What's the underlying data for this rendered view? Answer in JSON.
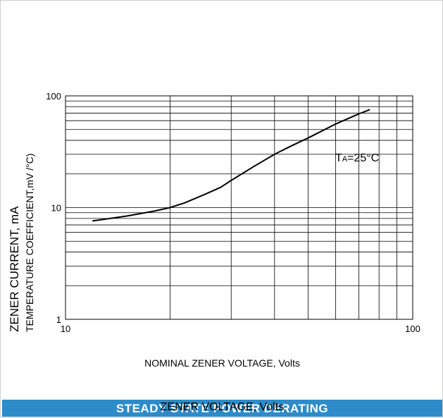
{
  "chart_data": {
    "type": "line",
    "xscale": "log",
    "yscale": "log",
    "xlim": [
      10,
      100
    ],
    "ylim": [
      1,
      100
    ],
    "x_ticks": [
      "10",
      "100"
    ],
    "y_ticks": [
      "1",
      "10",
      "100"
    ],
    "xlabel": "NOMINAL ZENER VOLTAGE, Volts",
    "ylabel": "ZENER CURRENT, mA",
    "ylabel2": "TEMPERATURE COEFFICIENT,mV /°C)",
    "annotation": {
      "main": "T",
      "sub": "A",
      "rest": "=25°C"
    },
    "grid": true,
    "series": [
      {
        "x": [
          12,
          15,
          18,
          20,
          22,
          25,
          28,
          30,
          35,
          40,
          45,
          50,
          60,
          70,
          75
        ],
        "y": [
          7.6,
          8.4,
          9.3,
          10.0,
          11.0,
          13.0,
          15.2,
          17.5,
          23.5,
          30,
          36,
          42,
          56,
          69,
          75
        ]
      }
    ]
  },
  "footer": {
    "title": "STEADY STATE POWER DERATING",
    "overlay": "ZENER VOLTAGE, Volts",
    "bg_color": "#2d8bc9"
  }
}
